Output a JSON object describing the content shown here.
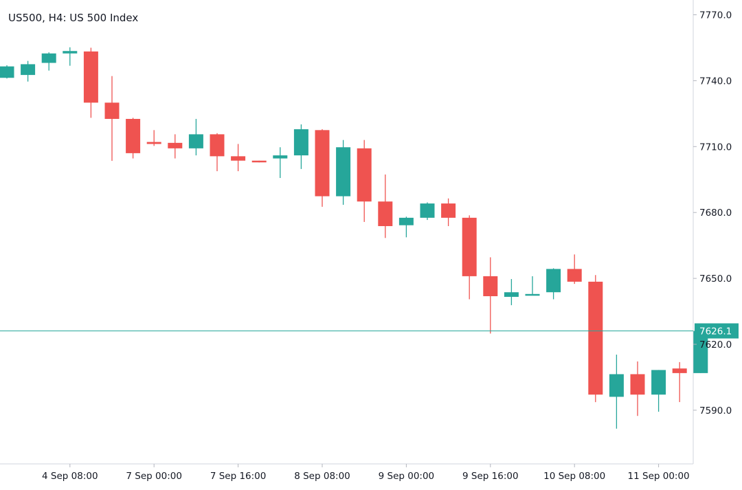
{
  "chart_data": {
    "type": "candlestick",
    "title": "US500, H4: US 500 Index",
    "y_ticks": [
      7590.0,
      7620.0,
      7650.0,
      7680.0,
      7710.0,
      7740.0,
      7770.0
    ],
    "y_tick_labels": [
      "7590.0",
      "7620.0",
      "7650.0",
      "7680.0",
      "7710.0",
      "7740.0",
      "7770.0"
    ],
    "x_tick_labels": [
      {
        "label": "4 Sep 08:00",
        "bar": 3
      },
      {
        "label": "7 Sep 00:00",
        "bar": 7
      },
      {
        "label": "7 Sep 16:00",
        "bar": 11
      },
      {
        "label": "8 Sep 08:00",
        "bar": 15
      },
      {
        "label": "9 Sep 00:00",
        "bar": 19
      },
      {
        "label": "9 Sep 16:00",
        "bar": 23
      },
      {
        "label": "10 Sep 08:00",
        "bar": 27
      },
      {
        "label": "11 Sep 00:00",
        "bar": 31
      }
    ],
    "current_price": 7626.1,
    "current_price_label": "7626.1",
    "colors": {
      "up": "#26a69a",
      "down": "#ef5350",
      "price_line": "#26a69a",
      "axis": "#d1d4dc"
    },
    "candles": [
      {
        "o": 7741.3,
        "h": 7747.0,
        "l": 7741.0,
        "c": 7746.5
      },
      {
        "o": 7742.6,
        "h": 7749.0,
        "l": 7739.6,
        "c": 7747.5
      },
      {
        "o": 7748.1,
        "h": 7752.9,
        "l": 7744.6,
        "c": 7752.4
      },
      {
        "o": 7752.4,
        "h": 7755.2,
        "l": 7746.8,
        "c": 7753.5
      },
      {
        "o": 7753.3,
        "h": 7755.0,
        "l": 7723.1,
        "c": 7730.0
      },
      {
        "o": 7730.0,
        "h": 7742.1,
        "l": 7703.5,
        "c": 7722.6
      },
      {
        "o": 7722.6,
        "h": 7723.1,
        "l": 7704.6,
        "c": 7707.0
      },
      {
        "o": 7712.1,
        "h": 7717.5,
        "l": 7710.3,
        "c": 7711.2
      },
      {
        "o": 7711.7,
        "h": 7715.6,
        "l": 7704.6,
        "c": 7709.2
      },
      {
        "o": 7709.2,
        "h": 7722.6,
        "l": 7706.0,
        "c": 7715.6
      },
      {
        "o": 7715.6,
        "h": 7716.1,
        "l": 7698.8,
        "c": 7705.6
      },
      {
        "o": 7705.6,
        "h": 7711.2,
        "l": 7698.8,
        "c": 7703.6
      },
      {
        "o": 7703.6,
        "h": 7703.6,
        "l": 7702.8,
        "c": 7703.3
      },
      {
        "o": 7704.6,
        "h": 7709.7,
        "l": 7695.7,
        "c": 7706.0
      },
      {
        "o": 7706.0,
        "h": 7720.1,
        "l": 7699.8,
        "c": 7717.9
      },
      {
        "o": 7717.5,
        "h": 7717.9,
        "l": 7682.6,
        "c": 7687.4
      },
      {
        "o": 7687.4,
        "h": 7713.0,
        "l": 7683.5,
        "c": 7709.7
      },
      {
        "o": 7709.2,
        "h": 7713.0,
        "l": 7675.7,
        "c": 7685.0
      },
      {
        "o": 7685.0,
        "h": 7697.3,
        "l": 7668.4,
        "c": 7673.8
      },
      {
        "o": 7674.2,
        "h": 7678.1,
        "l": 7668.7,
        "c": 7677.6
      },
      {
        "o": 7677.6,
        "h": 7684.6,
        "l": 7676.6,
        "c": 7684.1
      },
      {
        "o": 7684.1,
        "h": 7686.4,
        "l": 7673.8,
        "c": 7677.6
      },
      {
        "o": 7677.6,
        "h": 7678.7,
        "l": 7640.5,
        "c": 7651.0
      },
      {
        "o": 7651.0,
        "h": 7659.6,
        "l": 7624.9,
        "c": 7641.9
      },
      {
        "o": 7641.6,
        "h": 7649.7,
        "l": 7637.8,
        "c": 7643.7
      },
      {
        "o": 7642.9,
        "h": 7651.0,
        "l": 7642.2,
        "c": 7642.9
      },
      {
        "o": 7643.7,
        "h": 7654.6,
        "l": 7640.5,
        "c": 7654.3
      },
      {
        "o": 7654.3,
        "h": 7660.9,
        "l": 7647.5,
        "c": 7648.5
      },
      {
        "o": 7648.5,
        "h": 7651.5,
        "l": 7593.7,
        "c": 7597.1
      },
      {
        "o": 7596.1,
        "h": 7615.3,
        "l": 7581.6,
        "c": 7606.4
      },
      {
        "o": 7606.4,
        "h": 7612.2,
        "l": 7587.4,
        "c": 7597.1
      },
      {
        "o": 7597.1,
        "h": 7608.3,
        "l": 7589.3,
        "c": 7608.3
      },
      {
        "o": 7609.0,
        "h": 7611.9,
        "l": 7593.7,
        "c": 7606.9
      },
      {
        "o": 7606.9,
        "h": 7626.4,
        "l": 7606.9,
        "c": 7626.1
      }
    ]
  }
}
